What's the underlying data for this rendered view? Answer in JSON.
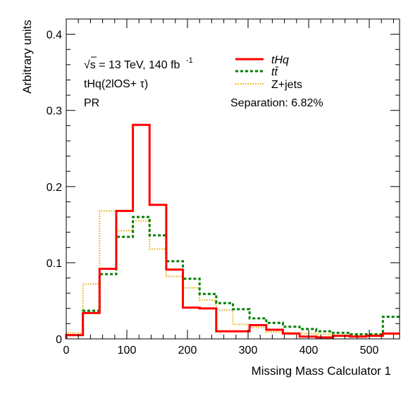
{
  "chart_data": {
    "type": "histogram",
    "xlabel": "Missing Mass Calculator 1",
    "ylabel": "Arbitrary units",
    "xlim": [
      0,
      550
    ],
    "ylim": [
      0,
      0.42
    ],
    "x_ticks": [
      "0",
      "100",
      "200",
      "300",
      "400",
      "500"
    ],
    "y_ticks": [
      "0",
      "0.1",
      "0.2",
      "0.3",
      "0.4"
    ],
    "bin_edges": [
      0,
      27.5,
      55,
      82.5,
      110,
      137.5,
      165,
      192.5,
      220,
      247.5,
      275,
      302.5,
      330,
      357.5,
      385,
      412.5,
      440,
      467.5,
      495,
      522.5,
      550
    ],
    "annotations": {
      "energy_prefix": "√s = 13 TeV, 140 fb",
      "energy_superscript": "-1",
      "region": "tHq(2lOS+ τ)",
      "label": "PR",
      "separation": "Separation: 6.82%"
    },
    "legend": {
      "placement": "top-right"
    },
    "series": [
      {
        "name": "tHq",
        "color": "#ff0000",
        "style": "solid",
        "values": [
          0.005,
          0.034,
          0.092,
          0.168,
          0.281,
          0.176,
          0.091,
          0.041,
          0.04,
          0.01,
          0.01,
          0.018,
          0.012,
          0.007,
          0.003,
          0.002,
          0.004,
          0.003,
          0.004,
          0.007
        ]
      },
      {
        "name": "tt̄",
        "color": "#008000",
        "style": "dashed",
        "values": [
          0.005,
          0.037,
          0.085,
          0.134,
          0.16,
          0.136,
          0.102,
          0.079,
          0.059,
          0.047,
          0.039,
          0.027,
          0.021,
          0.016,
          0.013,
          0.01,
          0.008,
          0.006,
          0.006,
          0.029
        ]
      },
      {
        "name": "Z+jets",
        "color": "#e6ac00",
        "style": "dotted",
        "values": [
          0.008,
          0.072,
          0.168,
          0.142,
          0.155,
          0.118,
          0.082,
          0.067,
          0.051,
          0.038,
          0.019,
          0.015,
          0.009,
          0.008,
          0.007,
          0.006,
          0.005,
          0.004,
          0.006,
          0.006
        ]
      }
    ]
  }
}
